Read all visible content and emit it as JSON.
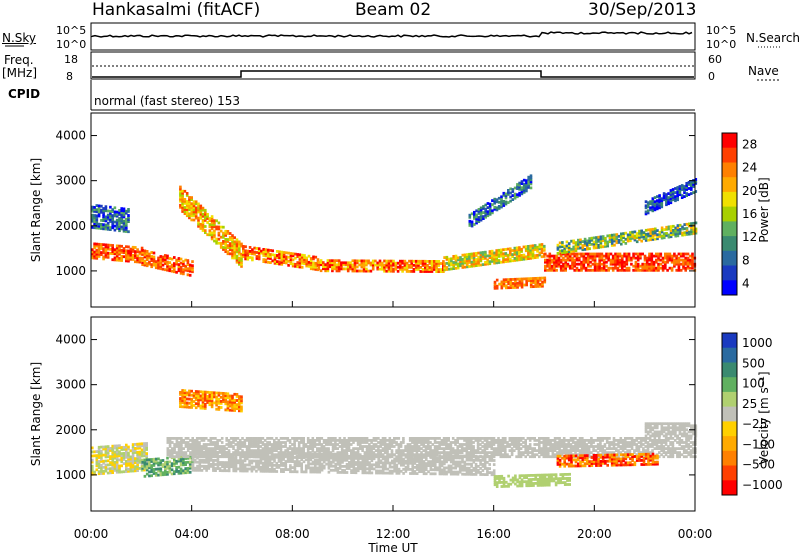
{
  "header": {
    "station": "Hankasalmi (fitACF)",
    "beam": "Beam 02",
    "date": "30/Sep/2013"
  },
  "top_panels": {
    "nsky_label": "N.Sky",
    "nsky_ticks": [
      "10^5",
      "10^0"
    ],
    "nsearch_label": "N.Search",
    "nsearch_ticks": [
      "10^5",
      "10^0"
    ],
    "freq_label_1": "Freq.",
    "freq_label_2": "[MHz]",
    "freq_ticks": [
      "18",
      "8"
    ],
    "nave_label": "Nave",
    "nave_ticks": [
      "60",
      "0"
    ],
    "cpid_label": "CPID",
    "cpid_text": "normal (fast stereo) 153"
  },
  "chart_data": [
    {
      "type": "heatmap",
      "name": "power-panel",
      "ylabel": "Slant Range [km]",
      "y_ticks": [
        1000,
        2000,
        3000,
        4000
      ],
      "ylim": [
        200,
        4500
      ],
      "x_ticks": [
        "00:00",
        "04:00",
        "08:00",
        "12:00",
        "16:00",
        "20:00",
        "00:00"
      ],
      "xlim_hours": [
        0,
        24
      ],
      "colorbar": {
        "label": "Power [dB]",
        "ticks": [
          "28",
          "24",
          "20",
          "16",
          "12",
          "8",
          "4"
        ],
        "colors": [
          "#ff0000",
          "#ff4000",
          "#ff8000",
          "#ffaa00",
          "#f0e000",
          "#a8d000",
          "#60b060",
          "#3a8a70",
          "#2a6aa0",
          "#1a3ac0",
          "#0000ff"
        ]
      }
    },
    {
      "type": "heatmap",
      "name": "velocity-panel",
      "ylabel": "Slant Range [km]",
      "y_ticks": [
        1000,
        2000,
        3000,
        4000
      ],
      "ylim": [
        200,
        4500
      ],
      "x_ticks": [
        "00:00",
        "04:00",
        "08:00",
        "12:00",
        "16:00",
        "20:00",
        "00:00"
      ],
      "xlim_hours": [
        0,
        24
      ],
      "xlabel": "Time UT",
      "colorbar": {
        "label": "Velocity [m s⁻¹]",
        "ticks": [
          "1000",
          "500",
          "100",
          "25",
          "−25",
          "−100",
          "−500",
          "−1000"
        ],
        "colors": [
          "#1a3ac0",
          "#2a6aa0",
          "#3a8a70",
          "#60b060",
          "#b0d070",
          "#c0c0b8",
          "#ffd000",
          "#ffaa00",
          "#ff8000",
          "#ff4000",
          "#ff0000"
        ]
      }
    }
  ]
}
